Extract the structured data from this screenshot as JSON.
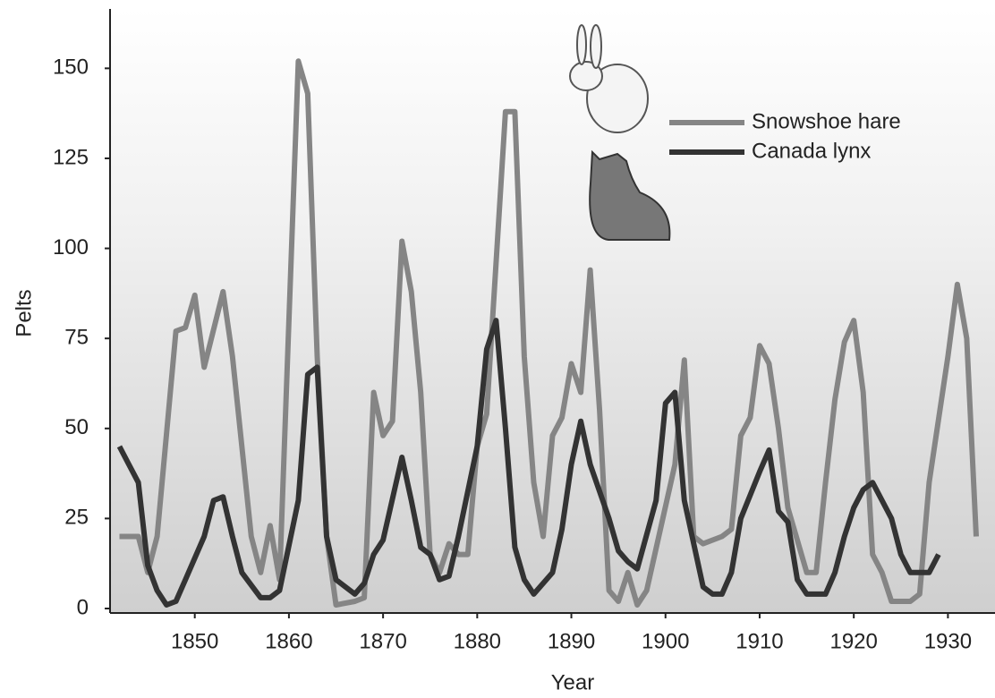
{
  "chart_data": {
    "type": "line",
    "xlabel": "Year",
    "ylabel": "Pelts",
    "xlim": [
      1841,
      1935
    ],
    "xticks": [
      1850,
      1860,
      1870,
      1880,
      1890,
      1900,
      1910,
      1920,
      1930
    ],
    "ylim": [
      0,
      165
    ],
    "yticks": [
      0,
      25,
      50,
      75,
      100,
      125,
      150
    ],
    "legend": "top-right",
    "series": [
      {
        "name": "Snowshoe hare",
        "color": "#858585",
        "x": [
          1842,
          1844,
          1845,
          1846,
          1848,
          1849,
          1850,
          1851,
          1853,
          1854,
          1856,
          1857,
          1858,
          1859,
          1861,
          1862,
          1863,
          1864,
          1865,
          1867,
          1868,
          1869,
          1870,
          1871,
          1872,
          1873,
          1874,
          1875,
          1876,
          1877,
          1878,
          1879,
          1880,
          1881,
          1883,
          1884,
          1885,
          1886,
          1887,
          1888,
          1889,
          1890,
          1891,
          1892,
          1893,
          1894,
          1895,
          1896,
          1897,
          1898,
          1901,
          1902,
          1903,
          1904,
          1906,
          1907,
          1908,
          1909,
          1910,
          1911,
          1912,
          1913,
          1915,
          1916,
          1917,
          1918,
          1919,
          1920,
          1921,
          1922,
          1923,
          1924,
          1926,
          1927,
          1928,
          1930,
          1931,
          1932,
          1933
        ],
        "values": [
          20,
          20,
          10,
          20,
          77,
          78,
          87,
          67,
          88,
          70,
          20,
          10,
          23,
          8,
          152,
          143,
          70,
          20,
          1,
          2,
          3,
          60,
          48,
          52,
          102,
          88,
          60,
          15,
          10,
          18,
          15,
          15,
          45,
          54,
          138,
          138,
          70,
          35,
          20,
          48,
          53,
          68,
          60,
          94,
          55,
          5,
          2,
          10,
          1,
          5,
          40,
          69,
          20,
          18,
          20,
          22,
          48,
          53,
          73,
          68,
          50,
          28,
          10,
          10,
          35,
          58,
          74,
          80,
          60,
          15,
          10,
          2,
          2,
          4,
          35,
          70,
          90,
          75,
          20
        ]
      },
      {
        "name": "Canada lynx",
        "color": "#333333",
        "x": [
          1842,
          1843,
          1844,
          1845,
          1846,
          1847,
          1848,
          1849,
          1851,
          1852,
          1853,
          1854,
          1855,
          1857,
          1858,
          1859,
          1861,
          1862,
          1863,
          1864,
          1865,
          1867,
          1868,
          1869,
          1870,
          1872,
          1873,
          1874,
          1875,
          1876,
          1877,
          1878,
          1880,
          1881,
          1882,
          1883,
          1884,
          1885,
          1886,
          1888,
          1889,
          1890,
          1891,
          1892,
          1894,
          1895,
          1896,
          1897,
          1899,
          1900,
          1901,
          1902,
          1904,
          1905,
          1906,
          1907,
          1908,
          1910,
          1911,
          1912,
          1913,
          1914,
          1915,
          1917,
          1918,
          1919,
          1920,
          1921,
          1922,
          1924,
          1925,
          1926,
          1928,
          1929
        ],
        "values": [
          45,
          40,
          35,
          12,
          5,
          1,
          2,
          8,
          20,
          30,
          31,
          20,
          10,
          3,
          3,
          5,
          30,
          65,
          67,
          20,
          8,
          4,
          7,
          15,
          19,
          42,
          30,
          17,
          15,
          8,
          9,
          20,
          45,
          72,
          80,
          50,
          17,
          8,
          4,
          10,
          22,
          40,
          52,
          40,
          25,
          16,
          13,
          11,
          30,
          57,
          60,
          30,
          6,
          4,
          4,
          10,
          25,
          38,
          44,
          27,
          24,
          8,
          4,
          4,
          10,
          20,
          28,
          33,
          35,
          25,
          15,
          10,
          10,
          15
        ]
      }
    ]
  }
}
